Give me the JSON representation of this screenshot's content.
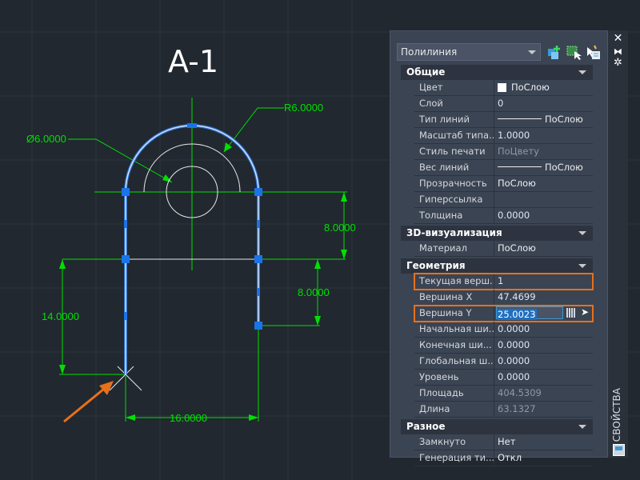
{
  "drawing": {
    "title": "A-1",
    "dims": {
      "radius": "R6.0000",
      "diameter": "Ø6.0000",
      "d1": "8.0000",
      "d2": "8.0000",
      "d3": "14.0000",
      "d4": "16.0000"
    },
    "colors": {
      "dimension": "#00e000",
      "polyline": "#5fa8ff",
      "grip": "#1a73e8",
      "annotation": "#e8701a"
    }
  },
  "panel": {
    "selector": "Полилиния",
    "toolbar": [
      "quick-select-icon",
      "select-objects-icon",
      "toggle-pickadd-icon"
    ],
    "side_tab": "СВОЙСТВА",
    "sections": [
      {
        "title": "Общие",
        "rows": [
          {
            "label": "Цвет",
            "value": "ПоСлою"
          },
          {
            "label": "Слой",
            "value": "0"
          },
          {
            "label": "Тип линий",
            "value": "ПоСлою"
          },
          {
            "label": "Масштаб типа...",
            "value": "1.0000"
          },
          {
            "label": "Стиль печати",
            "value": "ПоЦвету"
          },
          {
            "label": "Вес линий",
            "value": "ПоСлою"
          },
          {
            "label": "Прозрачность",
            "value": "ПоСлою"
          },
          {
            "label": "Гиперссылка",
            "value": ""
          },
          {
            "label": "Толщина",
            "value": "0.0000"
          }
        ]
      },
      {
        "title": "3D-визуализация",
        "rows": [
          {
            "label": "Материал",
            "value": "ПоСлою"
          }
        ]
      },
      {
        "title": "Геометрия",
        "rows": [
          {
            "label": "Текущая верш...",
            "value": "1"
          },
          {
            "label": "Вершина X",
            "value": "47.4699"
          },
          {
            "label": "Вершина Y",
            "value": "25.0023"
          },
          {
            "label": "Начальная ши...",
            "value": "0.0000"
          },
          {
            "label": "Конечная ши...",
            "value": "0.0000"
          },
          {
            "label": "Глобальная ш...",
            "value": "0.0000"
          },
          {
            "label": "Уровень",
            "value": "0.0000"
          },
          {
            "label": "Площадь",
            "value": "404.5309"
          },
          {
            "label": "Длина",
            "value": "63.1327"
          }
        ]
      },
      {
        "title": "Разное",
        "rows": [
          {
            "label": "Замкнуто",
            "value": "Нет"
          },
          {
            "label": "Генерация ти...",
            "value": "Откл"
          }
        ]
      }
    ]
  }
}
